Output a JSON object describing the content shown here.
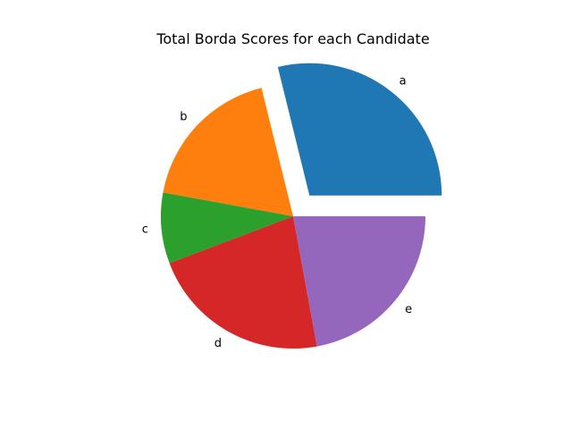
{
  "chart_data": {
    "type": "pie",
    "title": "Total Borda Scores for each Candidate",
    "categories": [
      "a",
      "b",
      "c",
      "d",
      "e"
    ],
    "values": [
      30,
      19,
      9,
      23,
      23
    ],
    "colors": [
      "#1f77b4",
      "#ff7f0e",
      "#2ca02c",
      "#d62728",
      "#9467bd"
    ],
    "explode": [
      0.2,
      0,
      0,
      0,
      0
    ],
    "start_angle_deg": 0,
    "direction": "counterclockwise",
    "legend": "none"
  }
}
